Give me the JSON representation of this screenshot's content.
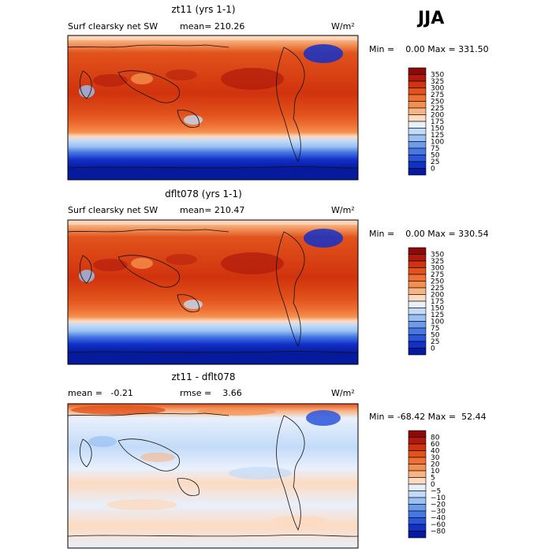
{
  "season": "JJA",
  "panels": [
    {
      "id": "top",
      "title": "zt11 (yrs 1-1)",
      "left_label": "Surf clearsky net SW",
      "mean_label": "mean= 210.26",
      "units": "W/m²",
      "stats": "Min =    0.00 Max = 331.50",
      "colorbar": {
        "labels": [
          "350",
          "325",
          "300",
          "275",
          "250",
          "225",
          "200",
          "175",
          "150",
          "125",
          "100",
          "75",
          "50",
          "25",
          "0"
        ],
        "colors": [
          "#8b0a0a",
          "#b0190c",
          "#d0330d",
          "#e2531c",
          "#ee7034",
          "#f4904e",
          "#f9b483",
          "#fddac0",
          "#e8f0fc",
          "#c3dbf8",
          "#98c0f2",
          "#6d9bea",
          "#4677e3",
          "#2a55d9",
          "#1231c8",
          "#061a9e"
        ]
      }
    },
    {
      "id": "middle",
      "title": "dflt078 (yrs 1-1)",
      "left_label": "Surf clearsky net SW",
      "mean_label": "mean= 210.47",
      "units": "W/m²",
      "stats": "Min =    0.00 Max = 330.54",
      "colorbar": {
        "labels": [
          "350",
          "325",
          "300",
          "275",
          "250",
          "225",
          "200",
          "175",
          "150",
          "125",
          "100",
          "75",
          "50",
          "25",
          "0"
        ],
        "colors": [
          "#8b0a0a",
          "#b0190c",
          "#d0330d",
          "#e2531c",
          "#ee7034",
          "#f4904e",
          "#f9b483",
          "#fddac0",
          "#e8f0fc",
          "#c3dbf8",
          "#98c0f2",
          "#6d9bea",
          "#4677e3",
          "#2a55d9",
          "#1231c8",
          "#061a9e"
        ]
      }
    },
    {
      "id": "bottom",
      "title": "zt11 - dflt078",
      "left_label": "mean =   -0.21",
      "mean_label": "rmse =    3.66",
      "units": "W/m²",
      "stats": "Min = -68.42 Max =  52.44",
      "colorbar": {
        "labels": [
          "80",
          "60",
          "40",
          "30",
          "20",
          "10",
          "5",
          "0",
          "−5",
          "−10",
          "−20",
          "−30",
          "−40",
          "−60",
          "−80"
        ],
        "colors": [
          "#8b0a0a",
          "#b0190c",
          "#d0330d",
          "#e2531c",
          "#ee7034",
          "#f4904e",
          "#f9b483",
          "#fddac0",
          "#e8f0fc",
          "#c3dbf8",
          "#98c0f2",
          "#6d9bea",
          "#4677e3",
          "#2a55d9",
          "#1231c8",
          "#061a9e"
        ]
      }
    }
  ]
}
